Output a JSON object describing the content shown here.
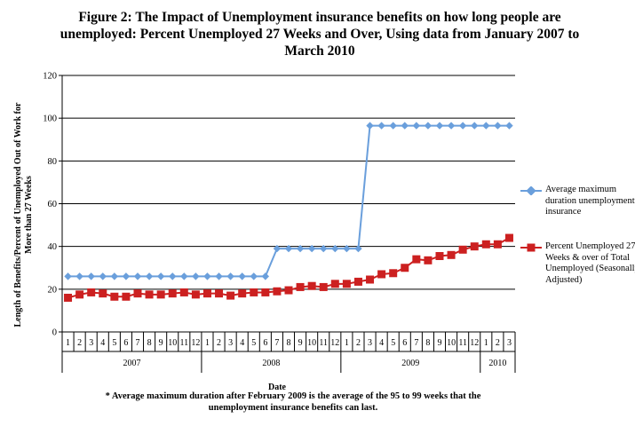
{
  "chart_data": {
    "type": "line",
    "title": "Figure 2: The Impact of Unemployment insurance benefits on how long people are unemployed: Percent Unemployed 27 Weeks and Over, Using data from January 2007 to March 2010",
    "xlabel": "Date",
    "ylabel": "Length of Benefits/Percent of Unemployed Out of Work for More than 27 Weeks",
    "ylim": [
      0,
      120
    ],
    "yticks": [
      "0",
      "20",
      "40",
      "60",
      "80",
      "100",
      "120"
    ],
    "grid": true,
    "legend_position": "right",
    "month_labels": [
      "1",
      "2",
      "3",
      "4",
      "5",
      "6",
      "7",
      "8",
      "9",
      "10",
      "11",
      "12",
      "1",
      "2",
      "3",
      "4",
      "5",
      "6",
      "7",
      "8",
      "9",
      "10",
      "11",
      "12",
      "1",
      "2",
      "3",
      "4",
      "5",
      "6",
      "7",
      "8",
      "9",
      "10",
      "11",
      "12",
      "1",
      "2",
      "3"
    ],
    "year_groups": [
      {
        "label": "2007",
        "months": 12
      },
      {
        "label": "2008",
        "months": 12
      },
      {
        "label": "2009",
        "months": 12
      },
      {
        "label": "2010",
        "months": 3
      }
    ],
    "series": [
      {
        "name": "Average maximum duration unemployment insurance",
        "color": "#6a9fdc",
        "marker": "diamond",
        "values": [
          26,
          26,
          26,
          26,
          26,
          26,
          26,
          26,
          26,
          26,
          26,
          26,
          26,
          26,
          26,
          26,
          26,
          26,
          39,
          39,
          39,
          39,
          39,
          39,
          39,
          39,
          96.5,
          96.5,
          96.5,
          96.5,
          96.5,
          96.5,
          96.5,
          96.5,
          96.5,
          96.5,
          96.5,
          96.5,
          96.5
        ]
      },
      {
        "name": "Percent Unemployed 27 Weeks & over of Total Unemployed (Seasonally Adjusted)",
        "color": "#cc2020",
        "marker": "square",
        "values": [
          16,
          17.5,
          18.5,
          18,
          16.5,
          16.5,
          18,
          17.5,
          17.5,
          18,
          18.5,
          17.5,
          18,
          18,
          17,
          18,
          18.5,
          18.5,
          19,
          19.5,
          21,
          21.5,
          21,
          22.5,
          22.5,
          23.5,
          24.5,
          27,
          27.5,
          30,
          34,
          33.5,
          35.5,
          36,
          38.5,
          40,
          41,
          41,
          44
        ]
      }
    ],
    "footnote": "* Average maximum duration after February 2009 is the average of the 95 to 99 weeks that the unemployment insurance benefits can last.",
    "legend": [
      "Average maximum duration unemployment insurance",
      "Percent Unemployed 27 Weeks & over of Total Unemployed (Seasonally Adjusted)"
    ]
  }
}
